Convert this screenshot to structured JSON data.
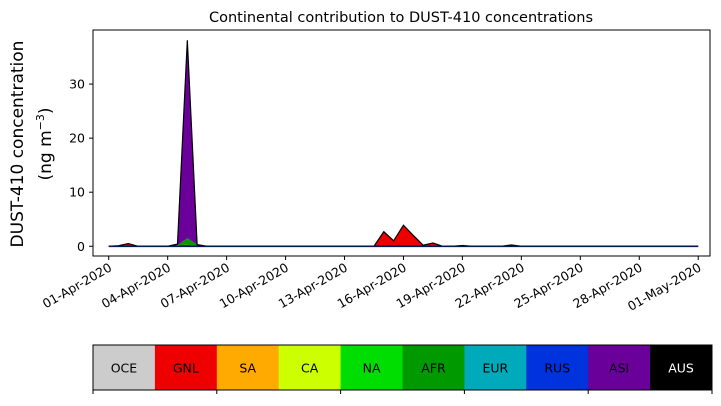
{
  "chart_data": {
    "type": "area",
    "stacked": true,
    "title": "Continental contribution to DUST-410 concentrations",
    "ylabel_line1": "DUST-410 concentration",
    "ylabel_line2_prefix": "(ng m",
    "ylabel_line2_sup": "−3",
    "ylabel_line2_suffix": ")",
    "xlabel": "",
    "ylim": [
      -1.8,
      40
    ],
    "yticks": [
      0,
      10,
      20,
      30
    ],
    "xlim": [
      -0.8,
      30.6
    ],
    "xticks": [
      {
        "x": 0,
        "label": "01-Apr-2020"
      },
      {
        "x": 3,
        "label": "04-Apr-2020"
      },
      {
        "x": 6,
        "label": "07-Apr-2020"
      },
      {
        "x": 9,
        "label": "10-Apr-2020"
      },
      {
        "x": 12,
        "label": "13-Apr-2020"
      },
      {
        "x": 15,
        "label": "16-Apr-2020"
      },
      {
        "x": 18,
        "label": "19-Apr-2020"
      },
      {
        "x": 21,
        "label": "22-Apr-2020"
      },
      {
        "x": 24,
        "label": "25-Apr-2020"
      },
      {
        "x": 27,
        "label": "28-Apr-2020"
      },
      {
        "x": 30,
        "label": "01-May-2020"
      }
    ],
    "x": [
      0,
      0.5,
      1,
      1.5,
      2,
      2.5,
      3,
      3.5,
      4,
      4.5,
      5,
      5.5,
      6,
      6.5,
      7,
      7.5,
      8,
      8.5,
      9,
      9.5,
      10,
      10.5,
      11,
      11.5,
      12,
      12.5,
      13,
      13.5,
      14,
      14.5,
      15,
      15.5,
      16,
      16.5,
      17,
      17.5,
      18,
      18.5,
      19,
      19.5,
      20,
      20.5,
      21,
      21.5,
      22,
      22.5,
      23,
      23.5,
      24,
      24.5,
      25,
      25.5,
      26,
      26.5,
      27,
      27.5,
      28,
      28.5,
      29,
      29.5,
      30
    ],
    "series": [
      {
        "name": "OCE",
        "color": "#cccccc",
        "values": [
          0,
          0,
          0,
          0,
          0,
          0,
          0,
          0,
          0,
          0,
          0,
          0,
          0,
          0,
          0,
          0,
          0,
          0,
          0,
          0,
          0,
          0,
          0,
          0,
          0,
          0,
          0,
          0,
          0,
          0,
          0,
          0,
          0,
          0,
          0,
          0,
          0,
          0,
          0,
          0,
          0,
          0,
          0,
          0,
          0,
          0,
          0,
          0,
          0,
          0,
          0,
          0,
          0,
          0,
          0,
          0,
          0,
          0,
          0,
          0,
          0
        ]
      },
      {
        "name": "GNL",
        "color": "#ee0000",
        "values": [
          0,
          0.1,
          0.5,
          0,
          0,
          0,
          0,
          0.2,
          0.3,
          0,
          0,
          0,
          0,
          0,
          0,
          0,
          0,
          0,
          0,
          0,
          0,
          0,
          0,
          0,
          0,
          0,
          0,
          0,
          2.7,
          1,
          3.9,
          2,
          0.2,
          0.6,
          0,
          0,
          0,
          0,
          0,
          0,
          0,
          0.25,
          0,
          0,
          0,
          0,
          0,
          0,
          0,
          0,
          0,
          0,
          0,
          0,
          0,
          0,
          0,
          0,
          0,
          0,
          0
        ]
      },
      {
        "name": "SA",
        "color": "#ffaa00",
        "values": [
          0,
          0,
          0,
          0,
          0,
          0,
          0,
          0,
          0,
          0,
          0,
          0,
          0,
          0,
          0,
          0,
          0,
          0,
          0,
          0,
          0,
          0,
          0,
          0,
          0,
          0,
          0,
          0,
          0,
          0,
          0,
          0,
          0,
          0,
          0,
          0,
          0.15,
          0,
          0,
          0,
          0,
          0,
          0,
          0,
          0,
          0,
          0,
          0,
          0,
          0,
          0,
          0,
          0,
          0,
          0,
          0,
          0,
          0,
          0,
          0,
          0
        ]
      },
      {
        "name": "CA",
        "color": "#ccff00",
        "values": [
          0,
          0,
          0,
          0,
          0,
          0,
          0,
          0,
          0,
          0,
          0,
          0,
          0,
          0,
          0,
          0,
          0,
          0,
          0,
          0,
          0,
          0,
          0,
          0,
          0,
          0,
          0,
          0,
          0,
          0,
          0,
          0,
          0,
          0,
          0,
          0,
          0,
          0,
          0,
          0,
          0,
          0,
          0,
          0,
          0,
          0,
          0,
          0,
          0,
          0,
          0,
          0,
          0,
          0,
          0,
          0,
          0,
          0,
          0,
          0,
          0
        ]
      },
      {
        "name": "NA",
        "color": "#00dd00",
        "values": [
          0,
          0,
          0,
          0,
          0,
          0,
          0,
          0,
          0,
          0,
          0,
          0,
          0,
          0,
          0,
          0,
          0,
          0,
          0,
          0,
          0,
          0,
          0,
          0,
          0,
          0,
          0,
          0,
          0,
          0,
          0,
          0,
          0,
          0,
          0,
          0,
          0,
          0,
          0,
          0,
          0,
          0,
          0,
          0,
          0,
          0,
          0,
          0,
          0,
          0,
          0,
          0,
          0,
          0,
          0,
          0,
          0,
          0,
          0,
          0,
          0
        ]
      },
      {
        "name": "AFR",
        "color": "#009900",
        "values": [
          0,
          0,
          0,
          0,
          0,
          0,
          0,
          0,
          1.2,
          0.3,
          0,
          0,
          0,
          0,
          0,
          0,
          0,
          0,
          0,
          0,
          0,
          0,
          0,
          0,
          0,
          0,
          0,
          0,
          0,
          0,
          0,
          0,
          0,
          0,
          0,
          0,
          0,
          0,
          0,
          0,
          0,
          0,
          0,
          0,
          0,
          0,
          0,
          0,
          0,
          0,
          0,
          0,
          0,
          0,
          0,
          0,
          0,
          0,
          0,
          0,
          0
        ]
      },
      {
        "name": "EUR",
        "color": "#00aabb",
        "values": [
          0,
          0,
          0,
          0,
          0,
          0,
          0,
          0,
          0,
          0,
          0,
          0,
          0,
          0,
          0,
          0,
          0,
          0,
          0,
          0,
          0,
          0,
          0,
          0,
          0,
          0,
          0,
          0,
          0,
          0,
          0,
          0,
          0,
          0,
          0,
          0,
          0,
          0,
          0,
          0,
          0,
          0,
          0,
          0,
          0,
          0,
          0,
          0,
          0,
          0,
          0,
          0,
          0,
          0,
          0,
          0,
          0,
          0,
          0,
          0,
          0
        ]
      },
      {
        "name": "RUS",
        "color": "#0033dd",
        "values": [
          0,
          0,
          0,
          0,
          0,
          0,
          0,
          0,
          0,
          0,
          0,
          0,
          0,
          0,
          0,
          0,
          0,
          0,
          0,
          0,
          0,
          0,
          0,
          0,
          0,
          0,
          0,
          0,
          0,
          0,
          0,
          0,
          0,
          0,
          0,
          0,
          0,
          0,
          0,
          0,
          0,
          0,
          0,
          0,
          0,
          0,
          0,
          0,
          0,
          0,
          0,
          0,
          0,
          0,
          0,
          0,
          0,
          0,
          0,
          0,
          0
        ]
      },
      {
        "name": "ASI",
        "color": "#6a0099",
        "values": [
          0,
          0,
          0,
          0,
          0,
          0,
          0,
          0.2,
          36.6,
          0,
          0,
          0,
          0,
          0,
          0,
          0,
          0,
          0,
          0,
          0,
          0,
          0,
          0,
          0,
          0,
          0,
          0,
          0,
          0,
          0,
          0,
          0,
          0,
          0,
          0,
          0,
          0,
          0,
          0,
          0,
          0,
          0,
          0,
          0,
          0,
          0,
          0,
          0,
          0,
          0,
          0,
          0,
          0,
          0,
          0,
          0,
          0,
          0,
          0,
          0,
          0
        ]
      },
      {
        "name": "AUS",
        "color": "#000000",
        "values": [
          0,
          0,
          0,
          0,
          0,
          0,
          0,
          0,
          0,
          0,
          0,
          0,
          0,
          0,
          0,
          0,
          0,
          0,
          0,
          0,
          0,
          0,
          0,
          0,
          0,
          0,
          0,
          0,
          0,
          0,
          0,
          0,
          0,
          0,
          0,
          0,
          0,
          0,
          0,
          0,
          0,
          0,
          0,
          0,
          0,
          0,
          0,
          0,
          0,
          0,
          0,
          0,
          0,
          0,
          0,
          0,
          0,
          0,
          0,
          0,
          0
        ]
      }
    ],
    "legend": {
      "placement": "bottom",
      "text_colors": [
        "#000000",
        "#000000",
        "#000000",
        "#000000",
        "#000000",
        "#000000",
        "#000000",
        "#000000",
        "#000000",
        "#ffffff"
      ]
    },
    "grid": false
  }
}
